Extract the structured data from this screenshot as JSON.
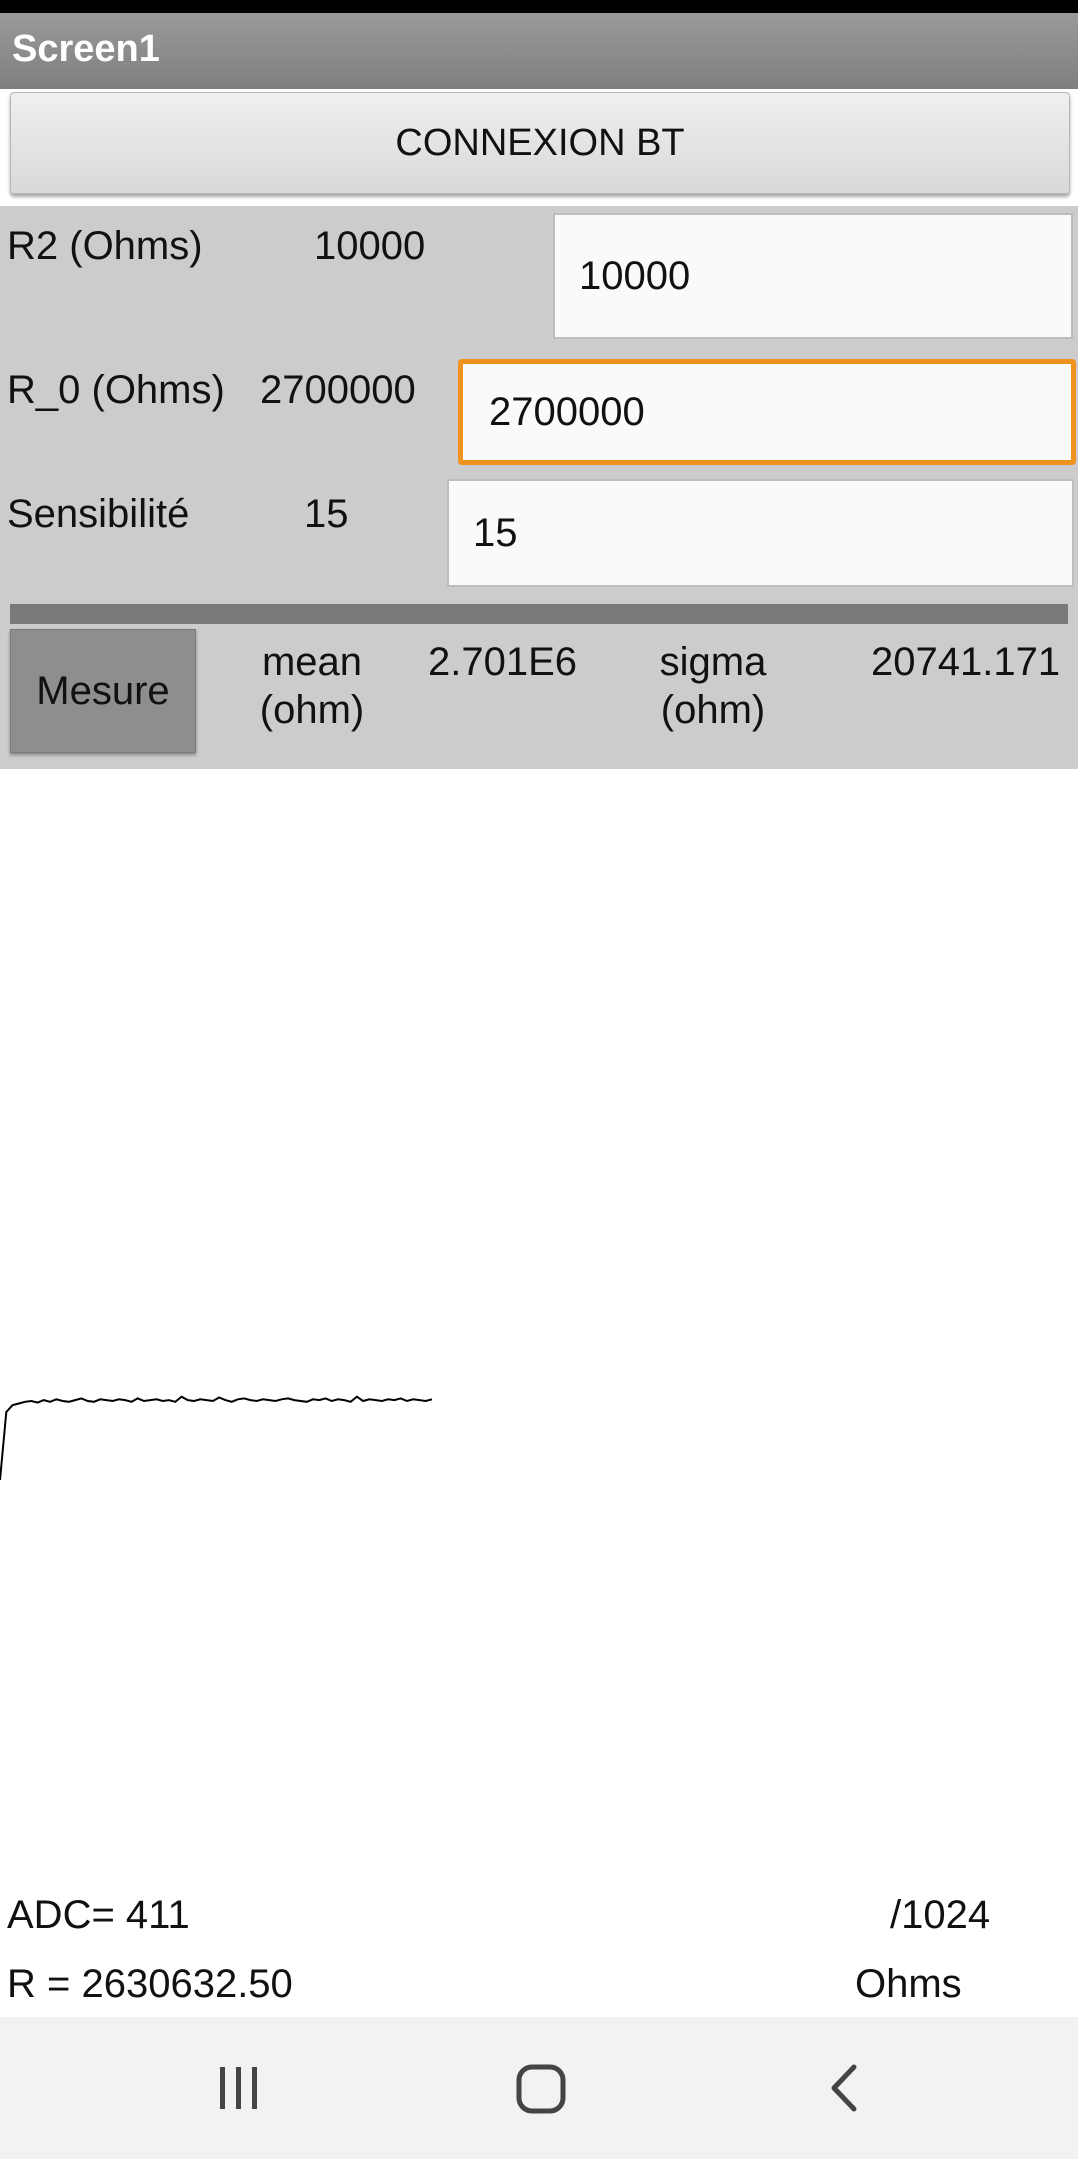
{
  "app": {
    "title": "Screen1"
  },
  "connect_button": {
    "label": "CONNEXION BT"
  },
  "r2": {
    "label": "R2 (Ohms)",
    "display_value": "10000",
    "input_value": "10000"
  },
  "r0": {
    "label": "R_0 (Ohms)",
    "display_value": "2700000",
    "input_value": "2700000"
  },
  "sensibilite": {
    "label": "Sensibilité",
    "display_value": "15",
    "input_value": "15"
  },
  "measure": {
    "button_label": "Mesure",
    "mean_label_line1": "mean",
    "mean_label_line2": "(ohm)",
    "mean_value": "2.701E6",
    "sigma_label_line1": "sigma",
    "sigma_label_line2": "(ohm)",
    "sigma_value": "20741.171"
  },
  "chart_data": {
    "type": "line",
    "title": "",
    "xlabel": "",
    "ylabel": "",
    "grid": false,
    "series": [
      {
        "values": [
          0,
          80,
          88,
          90,
          92,
          93,
          91,
          94,
          92,
          95,
          93,
          92,
          94,
          96,
          93,
          92,
          95,
          94,
          93,
          95,
          94,
          92,
          96,
          93,
          94,
          95,
          93,
          94,
          92,
          98,
          94,
          93,
          95,
          94,
          93,
          97,
          94,
          92,
          95,
          96,
          94,
          93,
          95,
          94,
          93,
          95,
          96,
          94,
          93,
          92,
          95,
          94,
          96,
          93,
          95,
          94,
          92,
          98,
          93,
          95,
          94,
          93,
          95,
          94,
          96,
          93,
          95,
          94,
          93,
          95
        ]
      }
    ],
    "line_color": "#000000"
  },
  "readout": {
    "adc_label": "ADC= 411",
    "adc_scale": "/1024",
    "r_label": "R =  2630632.50",
    "r_unit": "Ohms"
  },
  "nav": {
    "recents_icon": "recent-apps-icon",
    "home_icon": "home-icon",
    "back_icon": "back-icon"
  }
}
